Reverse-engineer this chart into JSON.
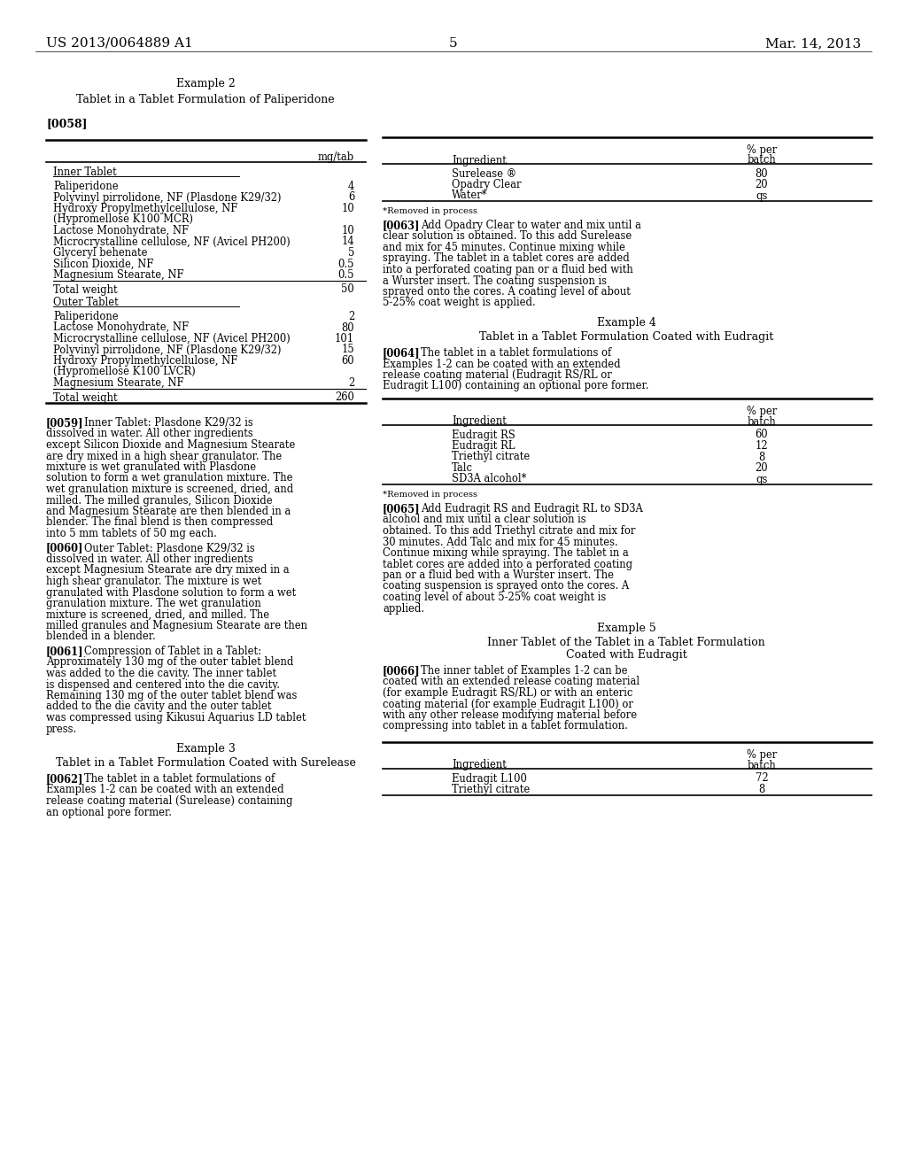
{
  "background_color": "#ffffff",
  "header_left": "US 2013/0064889 A1",
  "header_right": "Mar. 14, 2013",
  "page_number": "5",
  "left_col": {
    "example2_title": "Example 2",
    "example2_subtitle": "Tablet in a Tablet Formulation of Paliperidone",
    "para_0058": "[0058]",
    "table1_col_header": "mg/tab",
    "table1_section1": "Inner Tablet",
    "table1_rows_s1": [
      [
        "Paliperidone",
        "4"
      ],
      [
        "Polyvinyl pirrolidone, NF (Plasdone K29/32)",
        "6"
      ],
      [
        "Hydroxy Propylmethylcellulose, NF",
        "10",
        "(Hypromellose K100 MCR)"
      ],
      [
        "Lactose Monohydrate, NF",
        "10"
      ],
      [
        "Microcrystalline cellulose, NF (Avicel PH200)",
        "14"
      ],
      [
        "Glyceryl behenate",
        "5"
      ],
      [
        "Silicon Dioxide, NF",
        "0.5"
      ],
      [
        "Magnesium Stearate, NF",
        "0.5"
      ]
    ],
    "table1_total1": [
      "Total weight",
      "50"
    ],
    "table1_section2": "Outer Tablet",
    "table1_rows_s2": [
      [
        "Paliperidone",
        "2"
      ],
      [
        "Lactose Monohydrate, NF",
        "80"
      ],
      [
        "Microcrystalline cellulose, NF (Avicel PH200)",
        "101"
      ],
      [
        "Polyvinyl pirrolidone, NF (Plasdone K29/32)",
        "15"
      ],
      [
        "Hydroxy Propylmethylcellulose, NF",
        "60",
        "(Hypromellose K100 LVCR)"
      ],
      [
        "Magnesium Stearate, NF",
        "2"
      ]
    ],
    "table1_total2": [
      "Total weight",
      "260"
    ],
    "para_0059_tag": "[0059]",
    "para_0059": "Inner Tablet: Plasdone K29/32 is dissolved in water. All other ingredients except Silicon Dioxide and Magnesium Stearate are dry mixed in a high shear granulator. The mixture is wet granulated with Plasdone solution to form a wet granulation mixture. The wet granulation mixture is screened, dried, and milled. The milled granules, Silicon Dioxide and Magnesium Stearate are then blended in a blender. The final blend is then compressed into 5 mm tablets of 50 mg each.",
    "para_0060_tag": "[0060]",
    "para_0060": "Outer Tablet: Plasdone K29/32 is dissolved in water. All other ingredients except Magnesium Stearate are dry mixed in a high shear granulator. The mixture is wet granulated with Plasdone solution to form a wet granulation mixture. The wet granulation mixture is screened, dried, and milled. The milled granules and Magnesium Stearate are then blended in a blender.",
    "para_0061_tag": "[0061]",
    "para_0061": "Compression of Tablet in a Tablet: Approximately 130 mg of the outer tablet blend was added to the die cavity. The inner tablet is dispensed and centered into the die cavity. Remaining 130 mg of the outer tablet blend was added to the die cavity and the outer tablet was compressed using Kikusui Aquarius LD tablet press.",
    "example3_title": "Example 3",
    "example3_subtitle": "Tablet in a Tablet Formulation Coated with Surelease",
    "para_0062_tag": "[0062]",
    "para_0062": "The tablet in a tablet formulations of Examples 1-2 can be coated with an extended release coating material (Surelease) containing an optional pore former."
  },
  "right_col": {
    "table2_col1": "Ingredient",
    "table2_col2_line1": "% per",
    "table2_col2_line2": "batch",
    "table2_rows": [
      [
        "Surelease ®",
        "80"
      ],
      [
        "Opadry Clear",
        "20"
      ],
      [
        "Water*",
        "qs"
      ]
    ],
    "table2_footnote": "*Removed in process",
    "para_0063_tag": "[0063]",
    "para_0063": "Add Opadry Clear to water and mix until a clear solution is obtained. To this add Surelease and mix for 45 minutes. Continue mixing while spraying. The tablet in a tablet cores are added into a perforated coating pan or a fluid bed with a Wurster insert. The coating suspension is sprayed onto the cores. A coating level of about 5-25% coat weight is applied.",
    "example4_title": "Example 4",
    "example4_subtitle": "Tablet in a Tablet Formulation Coated with Eudragit",
    "para_0064_tag": "[0064]",
    "para_0064": "The tablet in a tablet formulations of Examples 1-2 can be coated with an extended release coating material (Eudragit RS/RL or Eudragit L100) containing an optional pore former.",
    "table3_col1": "Ingredient",
    "table3_col2_line1": "% per",
    "table3_col2_line2": "batch",
    "table3_rows": [
      [
        "Eudragit RS",
        "60"
      ],
      [
        "Eudragit RL",
        "12"
      ],
      [
        "Triethyl citrate",
        "8"
      ],
      [
        "Talc",
        "20"
      ],
      [
        "SD3A alcohol*",
        "qs"
      ]
    ],
    "table3_footnote": "*Removed in process",
    "para_0065_tag": "[0065]",
    "para_0065": "Add Eudragit RS and Eudragit RL to SD3A alcohol and mix until a clear solution is obtained. To this add Triethyl citrate and mix for 30 minutes. Add Talc and mix for 45 minutes. Continue mixing while spraying. The tablet in a tablet cores are added into a perforated coating pan or a fluid bed with a Wurster insert. The coating suspension is sprayed onto the cores. A coating level of about 5-25% coat weight is applied.",
    "example5_title": "Example 5",
    "example5_subtitle_line1": "Inner Tablet of the Tablet in a Tablet Formulation",
    "example5_subtitle_line2": "Coated with Eudragit",
    "para_0066_tag": "[0066]",
    "para_0066": "The inner tablet of Examples 1-2 can be coated with an extended release coating material (for example Eudragit RS/RL) or with an enteric coating material (for example Eudragit L100) or with any other release modifying material before compressing into tablet in a tablet formulation.",
    "table4_col1": "Ingredient",
    "table4_col2_line1": "% per",
    "table4_col2_line2": "batch",
    "table4_rows": [
      [
        "Eudragit L100",
        "72"
      ],
      [
        "Triethyl citrate",
        "8"
      ]
    ]
  }
}
